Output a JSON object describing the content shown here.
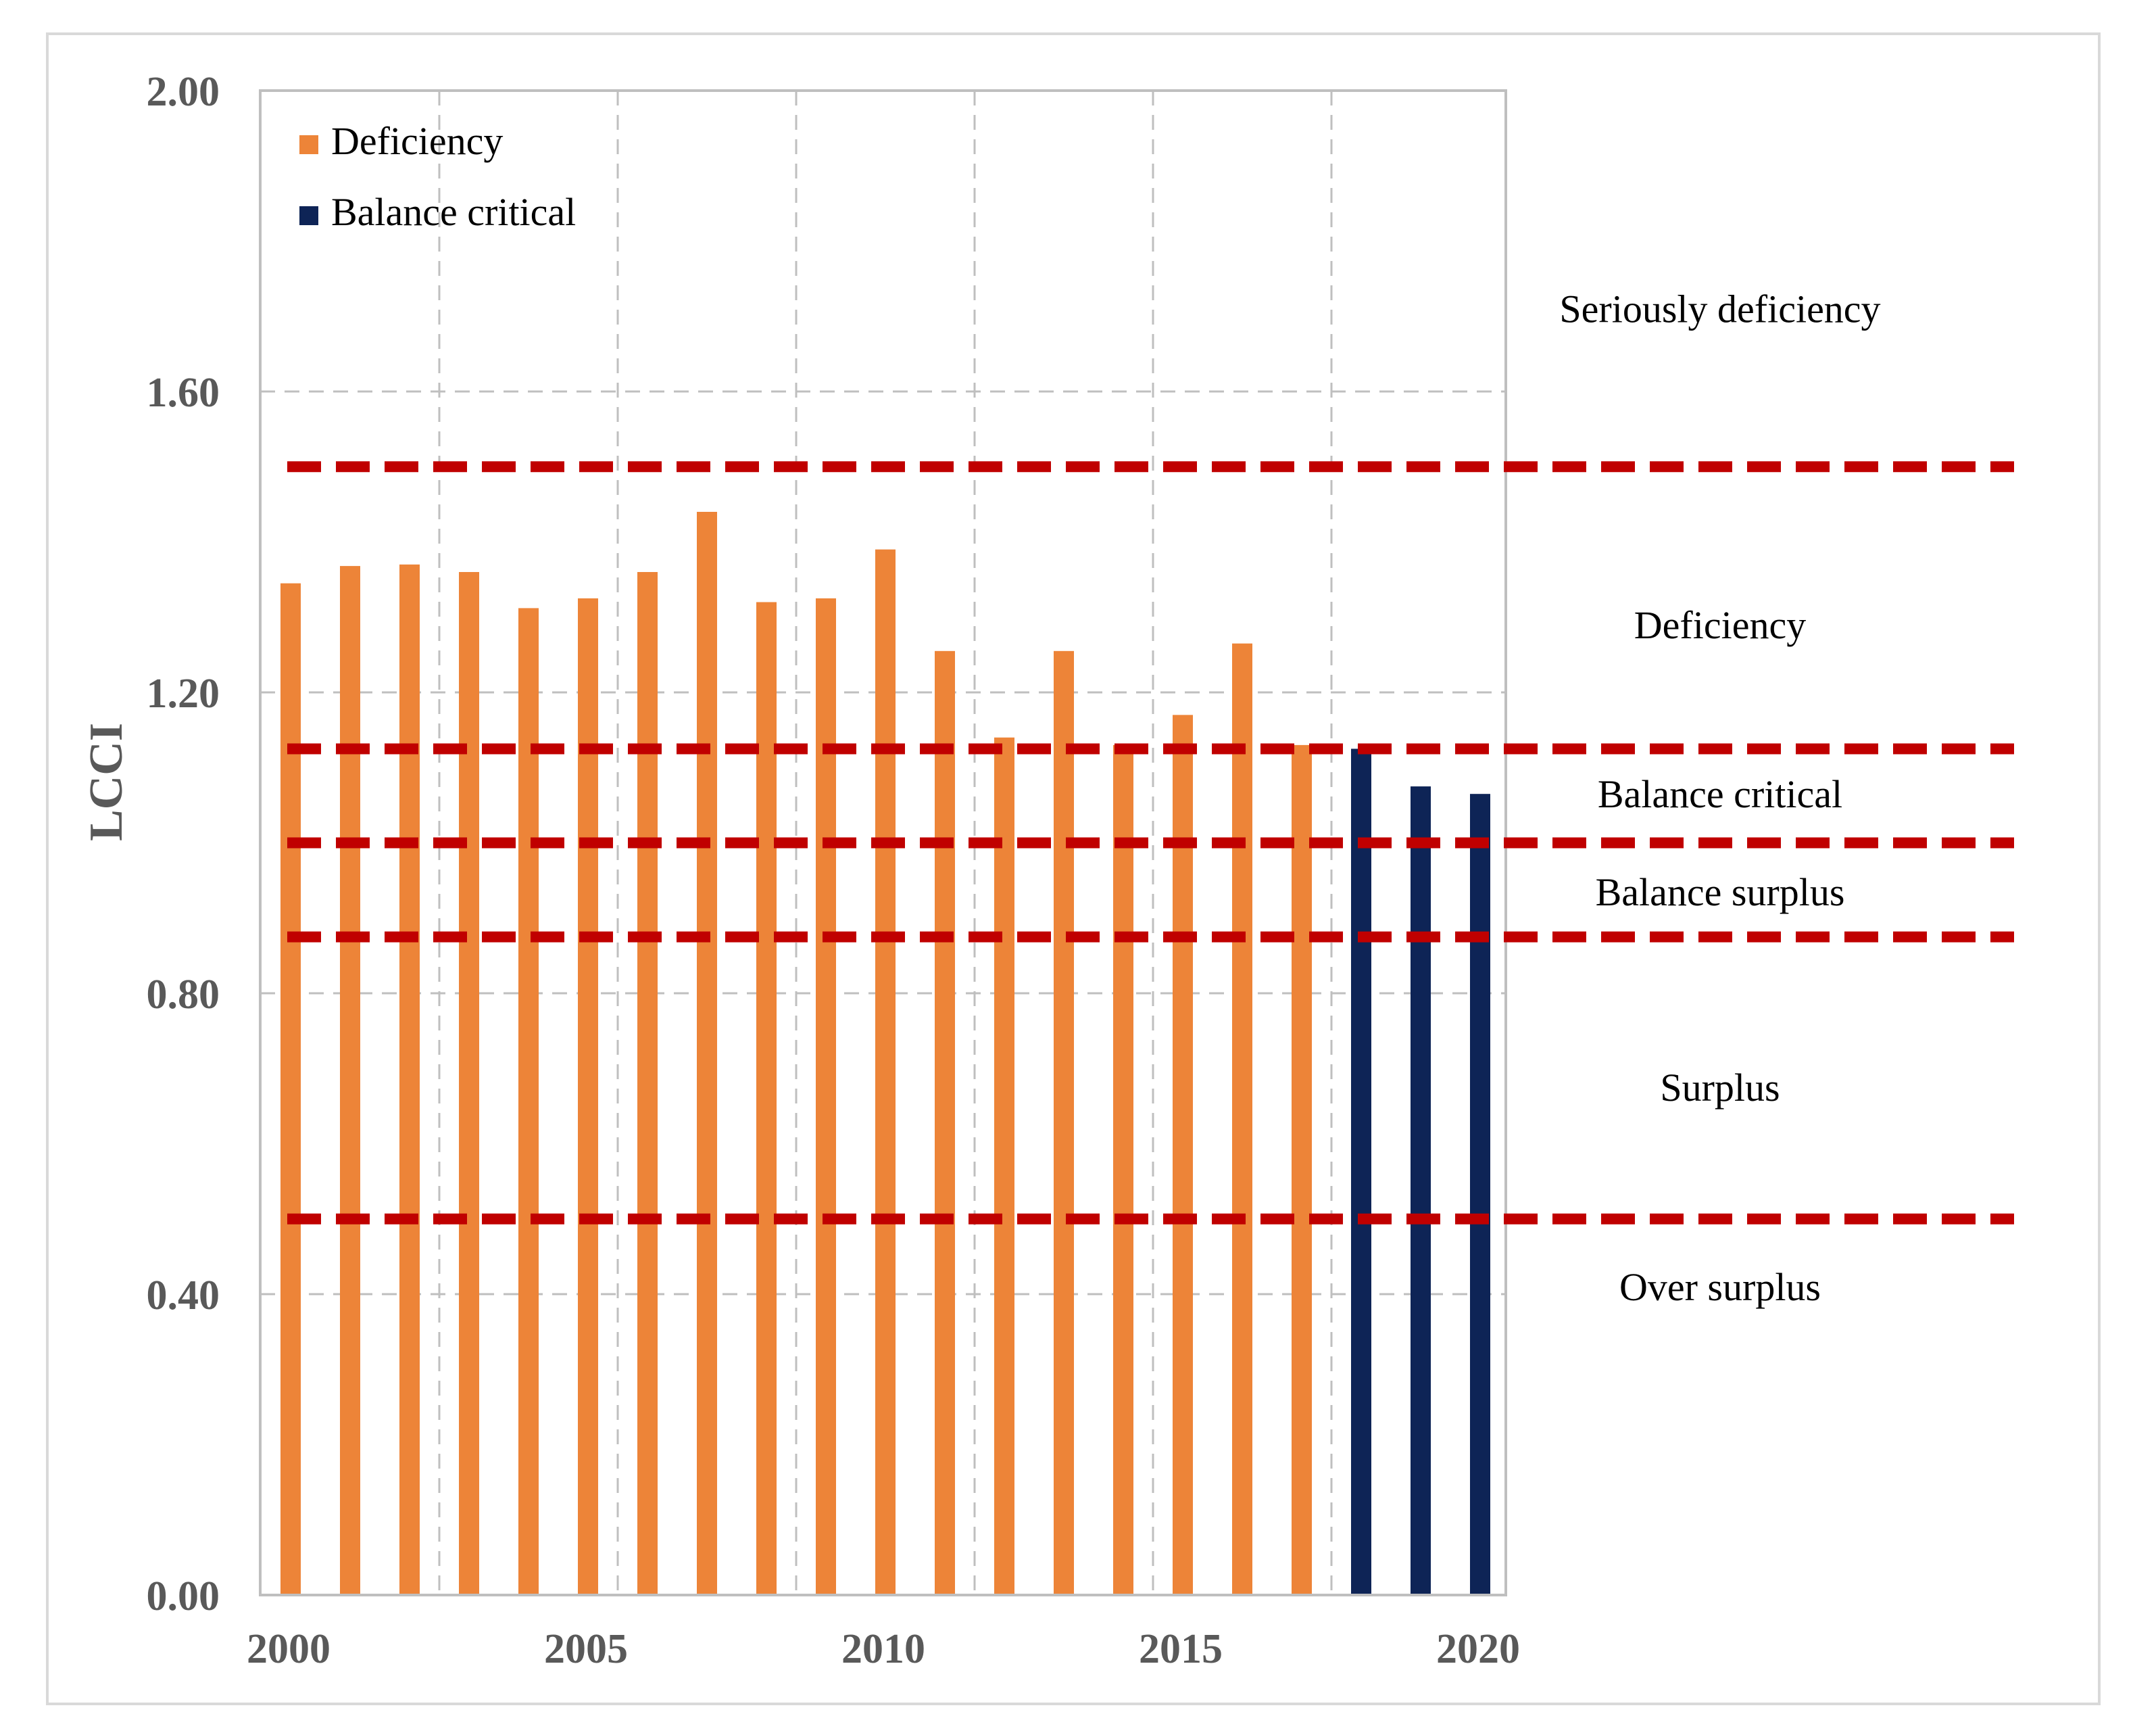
{
  "chart_data": {
    "type": "bar",
    "title": "",
    "xlabel": "",
    "ylabel": "LCCI",
    "ylim": [
      0,
      2.0
    ],
    "yticks": [
      "0.00",
      "0.40",
      "0.80",
      "1.20",
      "1.60",
      "2.00"
    ],
    "xticks": [
      "2000",
      "2005",
      "2010",
      "2015",
      "2020"
    ],
    "grid": true,
    "legend_position": "top-left",
    "x": [
      2000,
      2001,
      2002,
      2003,
      2004,
      2005,
      2006,
      2007,
      2008,
      2009,
      2010,
      2011,
      2012,
      2013,
      2014,
      2015,
      2016,
      2017,
      2018,
      2019,
      2020
    ],
    "series": [
      {
        "name": "Deficiency",
        "color": "#ED8438",
        "x": [
          2000,
          2001,
          2002,
          2003,
          2004,
          2005,
          2006,
          2007,
          2008,
          2009,
          2010,
          2011,
          2012,
          2013,
          2014,
          2015,
          2016,
          2017
        ],
        "values": [
          1.345,
          1.368,
          1.37,
          1.36,
          1.312,
          1.325,
          1.36,
          1.44,
          1.32,
          1.325,
          1.39,
          1.255,
          1.14,
          1.255,
          1.13,
          1.17,
          1.265,
          1.13
        ]
      },
      {
        "name": "Balance critical",
        "color": "#0E2456",
        "x": [
          2018,
          2019,
          2020
        ],
        "values": [
          1.125,
          1.075,
          1.065
        ]
      }
    ],
    "thresholds": [
      {
        "value": 1.5,
        "color": "#C00000"
      },
      {
        "value": 1.125,
        "color": "#C00000"
      },
      {
        "value": 1.0,
        "color": "#C00000"
      },
      {
        "value": 0.875,
        "color": "#C00000"
      },
      {
        "value": 0.5,
        "color": "#C00000"
      }
    ],
    "zones": [
      {
        "label": "Seriously deficiency",
        "value": 1.71
      },
      {
        "label": "Deficiency",
        "value": 1.29
      },
      {
        "label": "Balance critical",
        "value": 1.065
      },
      {
        "label": "Balance surplus",
        "value": 0.935
      },
      {
        "label": "Surplus",
        "value": 0.675
      },
      {
        "label": "Over surplus",
        "value": 0.41
      }
    ]
  }
}
